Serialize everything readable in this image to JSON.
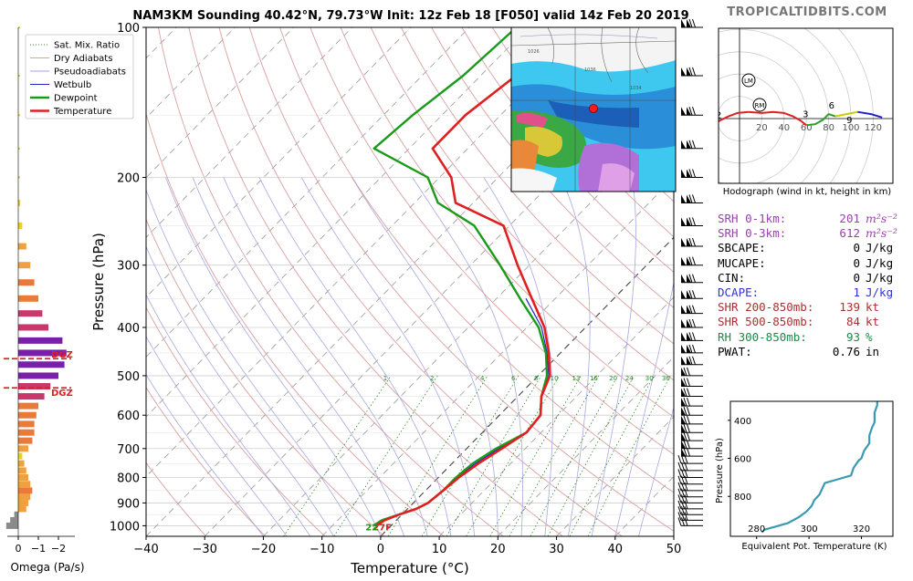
{
  "header": {
    "title": "NAM3KM Sounding 40.42°N, 79.73°W Init: 12z Feb 18 [F050] valid 14z Feb 20 2019",
    "brand": "TROPICALTIDBITS.COM"
  },
  "skewt": {
    "xlabel": "Temperature (°C)",
    "ylabel": "Pressure (hPa)",
    "xlim": [
      -40,
      50
    ],
    "ylim": [
      1050,
      100
    ],
    "xticks": [
      -40,
      -30,
      -20,
      -10,
      0,
      10,
      20,
      30,
      40,
      50
    ],
    "yticks": [
      100,
      200,
      300,
      400,
      500,
      600,
      700,
      800,
      900,
      1000
    ],
    "mixing_ratio_labels": [
      "1",
      "2",
      "4",
      "6",
      "8",
      "10",
      "13",
      "16",
      "20",
      "24",
      "30",
      "36"
    ],
    "surface_label": "27F",
    "surface_dew_label": "22",
    "legend": [
      {
        "label": "Sat. Mix. Ratio",
        "color": "#2e8b2e",
        "style": "dotted"
      },
      {
        "label": "Dry Adiabats",
        "color": "#d9a0a0",
        "style": "solid"
      },
      {
        "label": "Pseudoadiabats",
        "color": "#a0a0e0",
        "style": "solid"
      },
      {
        "label": "Wetbulb",
        "color": "#2222cc",
        "style": "solid"
      },
      {
        "label": "Dewpoint",
        "color": "#1a9a1a",
        "style": "thick"
      },
      {
        "label": "Temperature",
        "color": "#e02020",
        "style": "thick"
      }
    ]
  },
  "chart_data": [
    {
      "type": "line",
      "title": "",
      "xlabel": "Temperature (°C)",
      "ylabel": "Pressure (hPa)",
      "log_y": true,
      "series": [
        {
          "name": "Temperature",
          "color": "#e02020",
          "points": [
            [
              -2.5,
              1000
            ],
            [
              -2,
              975
            ],
            [
              -0.5,
              950
            ],
            [
              1.5,
              925
            ],
            [
              2.5,
              900
            ],
            [
              3,
              850
            ],
            [
              3.5,
              800
            ],
            [
              4.5,
              750
            ],
            [
              6,
              700
            ],
            [
              7.5,
              650
            ],
            [
              7,
              600
            ],
            [
              4,
              550
            ],
            [
              2,
              500
            ],
            [
              -2,
              450
            ],
            [
              -7,
              400
            ],
            [
              -14,
              350
            ],
            [
              -22,
              300
            ],
            [
              -31,
              250
            ],
            [
              -43,
              225
            ],
            [
              -48,
              200
            ],
            [
              -56,
              175
            ],
            [
              -56,
              150
            ],
            [
              -54,
              125
            ],
            [
              -52,
              100
            ]
          ]
        },
        {
          "name": "Dewpoint",
          "color": "#1a9a1a",
          "points": [
            [
              -3,
              1000
            ],
            [
              -2.5,
              975
            ],
            [
              -0.5,
              950
            ],
            [
              1.5,
              925
            ],
            [
              2.5,
              900
            ],
            [
              3,
              850
            ],
            [
              3,
              800
            ],
            [
              3.5,
              750
            ],
            [
              5,
              700
            ],
            [
              7.5,
              650
            ],
            [
              7,
              600
            ],
            [
              4,
              550
            ],
            [
              1.5,
              500
            ],
            [
              -2.5,
              450
            ],
            [
              -8,
              400
            ],
            [
              -16,
              350
            ],
            [
              -25,
              300
            ],
            [
              -36,
              250
            ],
            [
              -46,
              225
            ],
            [
              -52,
              200
            ],
            [
              -66,
              175
            ],
            [
              -65,
              150
            ],
            [
              -63,
              125
            ],
            [
              -62,
              100
            ]
          ]
        },
        {
          "name": "Wetbulb",
          "color": "#2222cc",
          "points": [
            [
              -2.8,
              1000
            ],
            [
              -2.2,
              975
            ],
            [
              -0.5,
              950
            ],
            [
              1.5,
              925
            ],
            [
              2.5,
              900
            ],
            [
              3,
              850
            ],
            [
              3.2,
              800
            ],
            [
              4,
              750
            ],
            [
              5.5,
              700
            ],
            [
              7.5,
              650
            ],
            [
              7,
              600
            ],
            [
              4,
              550
            ],
            [
              1.8,
              500
            ],
            [
              -2.3,
              450
            ],
            [
              -7.5,
              400
            ],
            [
              -15,
              350
            ]
          ]
        }
      ]
    },
    {
      "type": "bar",
      "title": "",
      "xlabel": "Omega (Pa/s)",
      "xticks": [
        "0",
        "−1",
        "−2"
      ],
      "dgz_label": "DGZ",
      "bars_pressure": [
        1000,
        975,
        950,
        925,
        900,
        875,
        850,
        825,
        800,
        775,
        750,
        725,
        700,
        675,
        650,
        625,
        600,
        575,
        550,
        525,
        500,
        475,
        450,
        425,
        400,
        375,
        350,
        325,
        300,
        275,
        250,
        225,
        200,
        175,
        150,
        125,
        100
      ],
      "values": [
        0.6,
        0.4,
        0.2,
        -0.4,
        -0.5,
        -0.6,
        -0.7,
        -0.6,
        -0.5,
        -0.4,
        -0.3,
        -0.2,
        -0.5,
        -0.7,
        -0.8,
        -0.8,
        -0.9,
        -1.0,
        -1.3,
        -1.6,
        -2.0,
        -2.3,
        -2.4,
        -2.2,
        -1.5,
        -1.2,
        -1.0,
        -0.8,
        -0.6,
        -0.4,
        -0.2,
        -0.1,
        0,
        0,
        0,
        0,
        0
      ]
    },
    {
      "type": "line",
      "title": "Hodograph (wind in kt, height in km)",
      "rings": [
        "20",
        "40",
        "60",
        "80",
        "100",
        "120"
      ],
      "labels": [
        "1",
        "2",
        "3",
        "6",
        "9",
        "LM",
        "RM"
      ],
      "points": [
        [
          -25,
          -8
        ],
        [
          -18,
          -2
        ],
        [
          -10,
          2
        ],
        [
          -2,
          5
        ],
        [
          8,
          6
        ],
        [
          20,
          5
        ],
        [
          30,
          6
        ],
        [
          40,
          5
        ],
        [
          48,
          2
        ],
        [
          55,
          -2
        ],
        [
          60,
          -6
        ],
        [
          68,
          -5
        ],
        [
          75,
          -1
        ],
        [
          80,
          4
        ],
        [
          86,
          2
        ],
        [
          96,
          4
        ],
        [
          106,
          6
        ],
        [
          118,
          4
        ],
        [
          128,
          1
        ]
      ]
    },
    {
      "type": "line",
      "xlabel": "Equivalent Pot. Temperature (K)",
      "ylabel": "Pressure (hPa)",
      "xticks": [
        280,
        300,
        320
      ],
      "yticks": [
        400,
        600,
        800
      ],
      "xlim": [
        270,
        332
      ],
      "ylim": [
        1010,
        300
      ],
      "color": "#3a9ab0",
      "points": [
        [
          282,
          990
        ],
        [
          283,
          975
        ],
        [
          287,
          960
        ],
        [
          292,
          940
        ],
        [
          296,
          910
        ],
        [
          299,
          880
        ],
        [
          301,
          850
        ],
        [
          302,
          820
        ],
        [
          304,
          790
        ],
        [
          305,
          760
        ],
        [
          306,
          730
        ],
        [
          311,
          710
        ],
        [
          316,
          690
        ],
        [
          317,
          650
        ],
        [
          318,
          630
        ],
        [
          319,
          610
        ],
        [
          320,
          600
        ],
        [
          321,
          560
        ],
        [
          323,
          520
        ],
        [
          323,
          480
        ],
        [
          324,
          440
        ],
        [
          325,
          410
        ],
        [
          325,
          360
        ],
        [
          326,
          320
        ],
        [
          326,
          300
        ]
      ]
    }
  ],
  "indices": [
    {
      "label": "SRH 0-1km:",
      "value": "201",
      "unit": "m²s⁻²",
      "color": "#9a3fb0"
    },
    {
      "label": "SRH 0-3km:",
      "value": "612",
      "unit": "m²s⁻²",
      "color": "#9a3fb0"
    },
    {
      "label": "SBCAPE:",
      "value": "0",
      "unit": "J/kg",
      "color": "#000000"
    },
    {
      "label": "MUCAPE:",
      "value": "0",
      "unit": "J/kg",
      "color": "#000000"
    },
    {
      "label": "CIN:",
      "value": "0",
      "unit": "J/kg",
      "color": "#000000"
    },
    {
      "label": "DCAPE:",
      "value": "1",
      "unit": "J/kg",
      "color": "#3333cc"
    },
    {
      "label": "SHR 200-850mb:",
      "value": "139",
      "unit": "kt",
      "color": "#a83232"
    },
    {
      "label": "SHR 500-850mb:",
      "value": "84",
      "unit": "kt",
      "color": "#a83232"
    },
    {
      "label": "RH 300-850mb:",
      "value": "93",
      "unit": "%",
      "color": "#1a8a4a"
    },
    {
      "label": "PWAT:",
      "value": "0.76",
      "unit": "in",
      "color": "#000000"
    }
  ],
  "inset_map": {
    "labels": [
      "1026",
      "1034",
      "1036"
    ]
  }
}
